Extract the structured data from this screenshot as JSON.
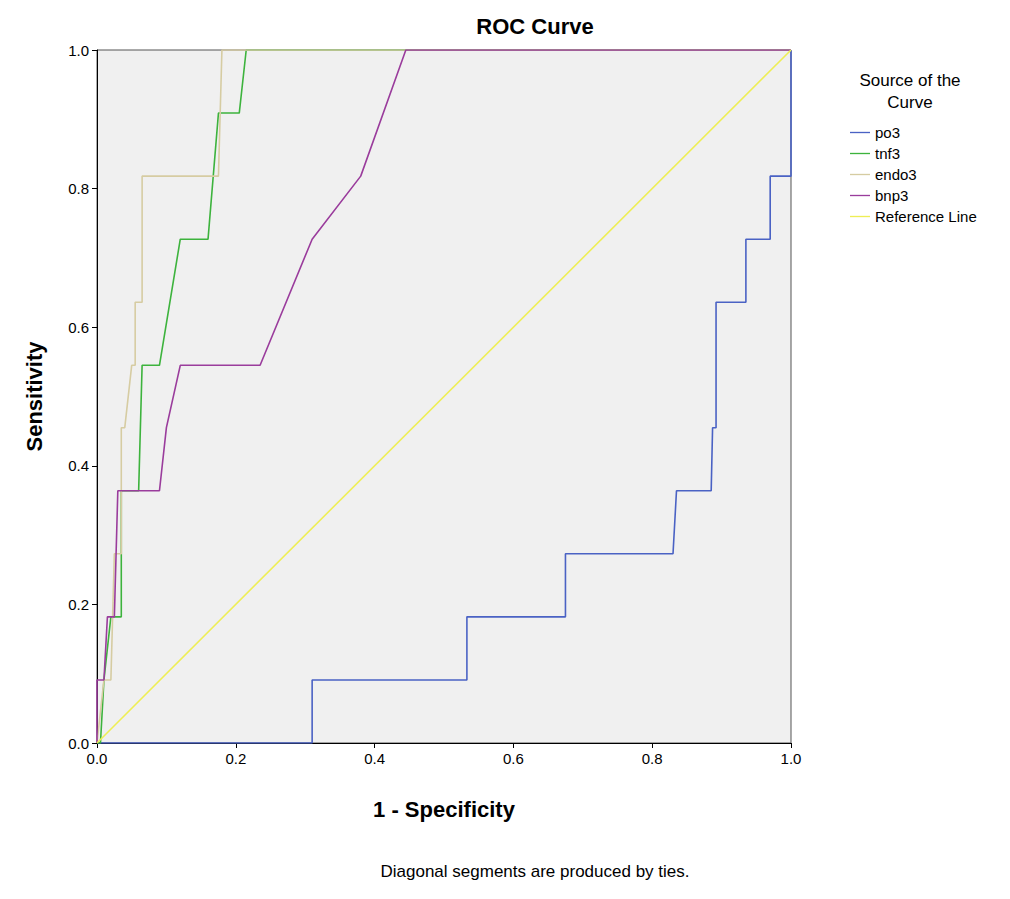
{
  "chart_data": {
    "type": "line",
    "title": "ROC Curve",
    "x_label": "1 - Specificity",
    "y_label": "Sensitivity",
    "legend_title": "Source of the Curve",
    "legend": "right",
    "annotations": [
      "Diagonal segments are produced by ties."
    ],
    "grid": false,
    "xlim": [
      0,
      1
    ],
    "ylim": [
      0,
      1
    ],
    "xticks": [
      {
        "value": 0,
        "label": "0.0"
      },
      {
        "value": 0.2,
        "label": "0.2"
      },
      {
        "value": 0.4,
        "label": "0.4"
      },
      {
        "value": 0.6,
        "label": "0.6"
      },
      {
        "value": 0.8,
        "label": "0.8"
      },
      {
        "value": 1,
        "label": "1.0"
      }
    ],
    "yticks": [
      {
        "value": 0,
        "label": "0.0"
      },
      {
        "value": 0.2,
        "label": "0.2"
      },
      {
        "value": 0.4,
        "label": "0.4"
      },
      {
        "value": 0.6,
        "label": "0.6"
      },
      {
        "value": 0.8,
        "label": "0.8"
      },
      {
        "value": 1,
        "label": "1.0"
      }
    ],
    "series": [
      {
        "name": "po3",
        "color": "#4a62c4",
        "x": [
          0,
          0.31,
          0.31,
          0.533,
          0.533,
          0.675,
          0.675,
          0.83,
          0.835,
          0.885,
          0.887,
          0.892,
          0.892,
          0.935,
          0.935,
          0.97,
          0.97,
          1.0,
          1.0
        ],
        "values": [
          0,
          0,
          0.091,
          0.091,
          0.182,
          0.182,
          0.273,
          0.273,
          0.364,
          0.364,
          0.455,
          0.455,
          0.636,
          0.636,
          0.727,
          0.727,
          0.818,
          0.818,
          1.0
        ]
      },
      {
        "name": "tnf3",
        "color": "#3db33d",
        "x": [
          0,
          0.005,
          0.01,
          0.02,
          0.035,
          0.035,
          0.06,
          0.065,
          0.09,
          0.12,
          0.16,
          0.175,
          0.205,
          0.215,
          1.0
        ],
        "values": [
          0,
          0,
          0.091,
          0.182,
          0.182,
          0.364,
          0.364,
          0.545,
          0.545,
          0.727,
          0.727,
          0.909,
          0.909,
          1.0,
          1.0
        ]
      },
      {
        "name": "endo3",
        "color": "#d6cca2",
        "x": [
          0,
          0.01,
          0.02,
          0.025,
          0.035,
          0.035,
          0.04,
          0.05,
          0.055,
          0.055,
          0.065,
          0.065,
          0.175,
          0.18,
          1.0
        ],
        "values": [
          0,
          0.091,
          0.091,
          0.273,
          0.273,
          0.455,
          0.455,
          0.545,
          0.545,
          0.636,
          0.636,
          0.818,
          0.818,
          1.0,
          1.0
        ]
      },
      {
        "name": "bnp3",
        "color": "#9a3c9c",
        "x": [
          0,
          0,
          0.01,
          0.015,
          0.025,
          0.03,
          0.09,
          0.1,
          0.12,
          0.235,
          0.31,
          0.38,
          0.445,
          1.0
        ],
        "values": [
          0,
          0.091,
          0.091,
          0.182,
          0.182,
          0.364,
          0.364,
          0.455,
          0.545,
          0.545,
          0.727,
          0.818,
          1.0,
          1.0
        ]
      },
      {
        "name": "Reference Line",
        "color": "#eeee55",
        "x": [
          0,
          1
        ],
        "values": [
          0,
          1
        ]
      }
    ]
  }
}
